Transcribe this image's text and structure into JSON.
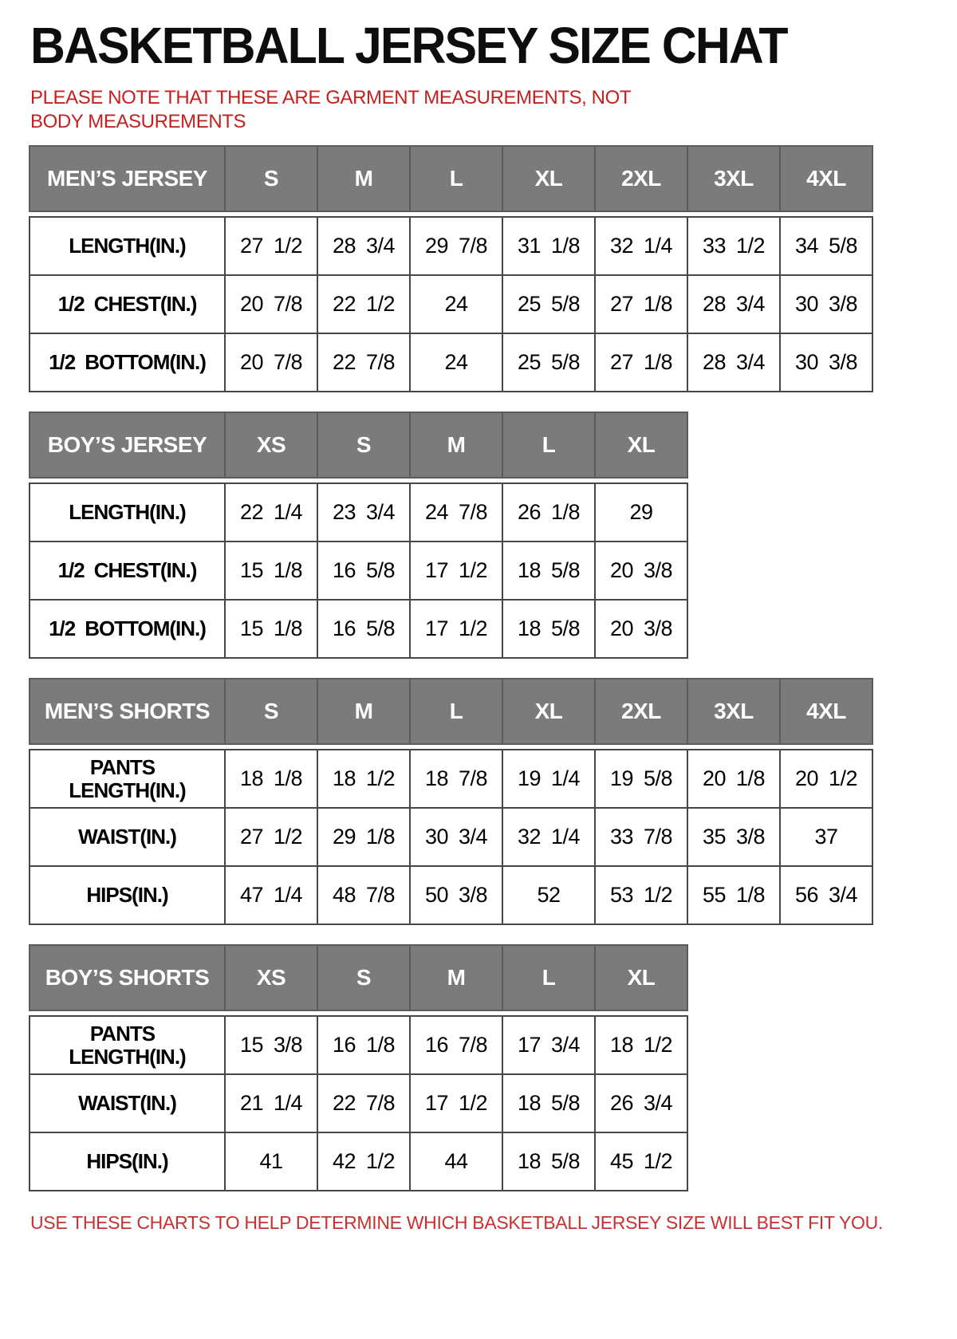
{
  "title": "BASKETBALL JERSEY SIZE CHAT",
  "note": "PLEASE NOTE THAT THESE ARE GARMENT MEASUREMENTS, NOT BODY MEASUREMENTS",
  "footer": "USE THESE CHARTS TO HELP DETERMINE WHICH BASKETBALL JERSEY SIZE WILL BEST FIT YOU.",
  "colors": {
    "header_bg": "#7b7b7b",
    "header_text": "#ffffff",
    "note_red": "#c32120",
    "footer_red": "#c9302f",
    "border": "#474747"
  },
  "tables": [
    {
      "name": "MEN’S JERSEY",
      "sizes": [
        "S",
        "M",
        "L",
        "XL",
        "2XL",
        "3XL",
        "4XL"
      ],
      "rows": [
        {
          "label": "LENGTH(IN.)",
          "values": [
            "27 1/2",
            "28 3/4",
            "29 7/8",
            "31 1/8",
            "32 1/4",
            "33 1/2",
            "34 5/8"
          ]
        },
        {
          "label": "1/2 CHEST(IN.)",
          "values": [
            "20 7/8",
            "22 1/2",
            "24",
            "25 5/8",
            "27 1/8",
            "28 3/4",
            "30 3/8"
          ]
        },
        {
          "label": "1/2 BOTTOM(IN.)",
          "values": [
            "20 7/8",
            "22 7/8",
            "24",
            "25 5/8",
            "27 1/8",
            "28 3/4",
            "30 3/8"
          ]
        }
      ]
    },
    {
      "name": "BOY’S JERSEY",
      "sizes": [
        "XS",
        "S",
        "M",
        "L",
        "XL"
      ],
      "rows": [
        {
          "label": "LENGTH(IN.)",
          "values": [
            "22 1/4",
            "23 3/4",
            "24 7/8",
            "26 1/8",
            "29"
          ]
        },
        {
          "label": "1/2 CHEST(IN.)",
          "values": [
            "15 1/8",
            "16 5/8",
            "17 1/2",
            "18 5/8",
            "20 3/8"
          ]
        },
        {
          "label": "1/2 BOTTOM(IN.)",
          "values": [
            "15 1/8",
            "16 5/8",
            "17 1/2",
            "18 5/8",
            "20 3/8"
          ]
        }
      ]
    },
    {
      "name": "MEN’S SHORTS",
      "sizes": [
        "S",
        "M",
        "L",
        "XL",
        "2XL",
        "3XL",
        "4XL"
      ],
      "rows": [
        {
          "label": "PANTS LENGTH(IN.)",
          "values": [
            "18 1/8",
            "18 1/2",
            "18 7/8",
            "19 1/4",
            "19 5/8",
            "20 1/8",
            "20 1/2"
          ]
        },
        {
          "label": "WAIST(IN.)",
          "values": [
            "27 1/2",
            "29 1/8",
            "30 3/4",
            "32 1/4",
            "33 7/8",
            "35 3/8",
            "37"
          ]
        },
        {
          "label": "HIPS(IN.)",
          "values": [
            "47 1/4",
            "48 7/8",
            "50 3/8",
            "52",
            "53 1/2",
            "55 1/8",
            "56 3/4"
          ]
        }
      ]
    },
    {
      "name": "BOY’S SHORTS",
      "sizes": [
        "XS",
        "S",
        "M",
        "L",
        "XL"
      ],
      "rows": [
        {
          "label": "PANTS LENGTH(IN.)",
          "values": [
            "15 3/8",
            "16 1/8",
            "16 7/8",
            "17 3/4",
            "18 1/2"
          ]
        },
        {
          "label": "WAIST(IN.)",
          "values": [
            "21 1/4",
            "22 7/8",
            "17 1/2",
            "18 5/8",
            "26 3/4"
          ]
        },
        {
          "label": "HIPS(IN.)",
          "values": [
            "41",
            "42 1/2",
            "44",
            "18 5/8",
            "45 1/2"
          ]
        }
      ]
    }
  ],
  "layout": {
    "label_col_width": 245,
    "size_col_width": 116
  }
}
